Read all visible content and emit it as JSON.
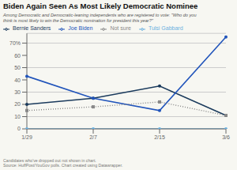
{
  "chart_data": {
    "type": "line",
    "title": "Biden Again Seen As Most Likely Democratic Nominee",
    "subtitle": "Among Democratic and Democratic-leaning independents who are registered to vote: \"Who do you\nthink is most likely to win the Democratic nomination for president this year?\"",
    "footnote": "Candidates who've dropped out not shown in chart.\nSource: HuffPost/YouGov polls. Chart created using Datawrapper.",
    "categories": [
      "1/29",
      "2/7",
      "2/15",
      "3/6"
    ],
    "series": [
      {
        "name": "Bernie Sanders",
        "color": "#1a3a5c",
        "values": [
          20,
          25,
          35,
          11
        ],
        "marker": "circle",
        "line_style": "solid"
      },
      {
        "name": "Joe Biden",
        "color": "#2255bb",
        "values": [
          43,
          25,
          15,
          75
        ],
        "marker": "circle",
        "line_style": "solid"
      },
      {
        "name": "Tulsi Gabbard",
        "color": "#6ab0e0",
        "values": [
          0,
          0,
          0,
          0
        ],
        "marker": "circle",
        "line_style": "solid"
      },
      {
        "name": "Not sure",
        "color": "#888888",
        "values": [
          15,
          18,
          22,
          11
        ],
        "marker": "square",
        "line_style": "dotted"
      }
    ],
    "ylim": [
      0,
      78
    ],
    "yticks": [
      0,
      10,
      20,
      30,
      40,
      50,
      60,
      {
        "value": 70,
        "label": "70%"
      }
    ],
    "grid": true
  }
}
